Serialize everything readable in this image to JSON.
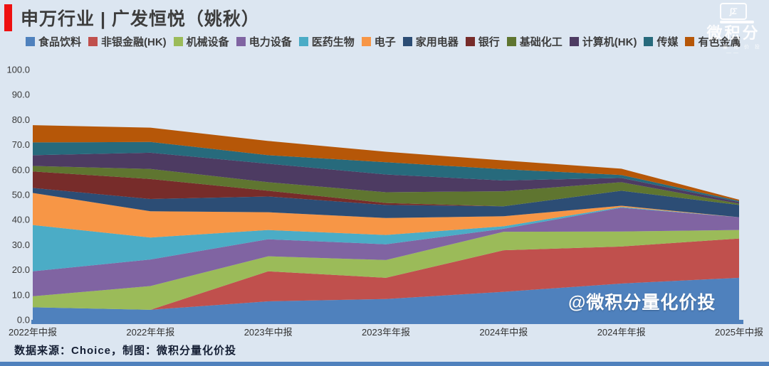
{
  "header": {
    "title": "申万行业 | 广发恒悦（姚秋）"
  },
  "brand_logo": {
    "icon_symbols": "∫Σ",
    "name": "微积分",
    "subtitle": "—— 量 化 价 投 ——"
  },
  "watermark": "@微积分量化价投",
  "footer": {
    "source_text": "数据来源：Choice，制图：微积分量化价投"
  },
  "colors": {
    "accent_red": "#ee1111",
    "axis_blue": "#4f81bd",
    "background": "#dce6f1"
  },
  "chart_data": {
    "type": "area",
    "stacked": true,
    "grid": false,
    "legend_position": "top",
    "ylim": [
      0,
      100
    ],
    "ytick_labels": [
      "0.0",
      "10.0",
      "20.0",
      "30.0",
      "40.0",
      "50.0",
      "60.0",
      "70.0",
      "80.0",
      "90.0",
      "100.0"
    ],
    "categories": [
      "2022年中报",
      "2022年年报",
      "2023年中报",
      "2023年年报",
      "2024年中报",
      "2024年年报",
      "2025年中报"
    ],
    "series": [
      {
        "name": "食品饮料",
        "color": "#4F81BD",
        "values": [
          5.0,
          4.0,
          7.4,
          8.3,
          11.2,
          14.5,
          16.8
        ]
      },
      {
        "name": "非银金融(HK)",
        "color": "#C0504D",
        "values": [
          0.0,
          0.0,
          12.0,
          8.5,
          16.6,
          14.8,
          15.7
        ]
      },
      {
        "name": "机械设备",
        "color": "#9BBB59",
        "values": [
          4.4,
          9.5,
          6.0,
          7.1,
          7.4,
          6.0,
          3.4
        ]
      },
      {
        "name": "电力设备",
        "color": "#8064A2",
        "values": [
          10.0,
          10.6,
          6.8,
          6.3,
          1.2,
          9.5,
          5.1
        ]
      },
      {
        "name": "医药生物",
        "color": "#4BACC6",
        "values": [
          18.5,
          8.8,
          3.7,
          3.7,
          1.0,
          0.3,
          0.0
        ]
      },
      {
        "name": "电子",
        "color": "#F79646",
        "values": [
          12.8,
          10.5,
          7.1,
          6.8,
          4.0,
          0.5,
          0.0
        ]
      },
      {
        "name": "家用电器",
        "color": "#2C4D75",
        "values": [
          2.0,
          4.9,
          6.3,
          5.2,
          4.0,
          6.0,
          4.9
        ]
      },
      {
        "name": "银行",
        "color": "#772C2A",
        "values": [
          6.6,
          8.0,
          2.3,
          0.8,
          0.0,
          0.0,
          0.0
        ]
      },
      {
        "name": "基础化工",
        "color": "#5F7530",
        "values": [
          2.2,
          4.0,
          3.4,
          4.3,
          6.0,
          3.4,
          0.5
        ]
      },
      {
        "name": "计算机(HK)",
        "color": "#4D3B62",
        "values": [
          4.3,
          6.5,
          7.4,
          7.1,
          4.3,
          1.7,
          0.7
        ]
      },
      {
        "name": "传媒",
        "color": "#276A7C",
        "values": [
          5.1,
          4.3,
          3.4,
          4.9,
          4.5,
          1.2,
          0.4
        ]
      },
      {
        "name": "有色金属",
        "color": "#B65708",
        "values": [
          6.9,
          5.7,
          5.7,
          4.2,
          3.5,
          2.5,
          0.5
        ]
      }
    ]
  }
}
